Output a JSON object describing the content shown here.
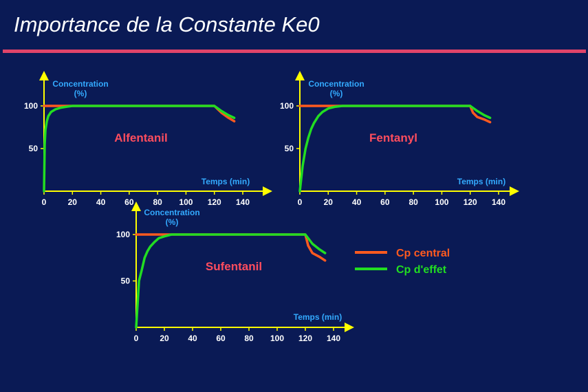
{
  "title": "Importance de la Constante Ke0",
  "colors": {
    "background": "#0a1a55",
    "title_rule": "#e0446a",
    "axis": "#ffff00",
    "central": "#ff5a1f",
    "effect": "#22dd22",
    "drug_label": "#ff4d5e",
    "axis_label": "#33aaff"
  },
  "legend": [
    {
      "label": "Cp central",
      "color": "#ff5a1f"
    },
    {
      "label": "Cp d'effet",
      "color": "#22dd22"
    }
  ],
  "chart_data": [
    {
      "type": "line",
      "label": "Alfentanil",
      "ylabel_line1": "Concentration",
      "ylabel_line2": "(%)",
      "xlabel": "Temps (min)",
      "xticks": [
        0,
        20,
        40,
        60,
        80,
        100,
        120,
        140
      ],
      "yticks": [
        50,
        100
      ],
      "xlim": [
        0,
        150
      ],
      "ylim": [
        0,
        120
      ],
      "series": [
        {
          "key": "central",
          "x": [
            0,
            120,
            125,
            130,
            134
          ],
          "y": [
            100,
            100,
            92,
            86,
            82
          ]
        },
        {
          "key": "effect",
          "x": [
            0,
            0.5,
            1,
            2,
            3,
            5,
            8,
            12,
            16,
            20,
            120,
            125,
            130,
            134
          ],
          "y": [
            0,
            55,
            72,
            82,
            88,
            93,
            96,
            98,
            99,
            100,
            100,
            94,
            89,
            86
          ]
        }
      ]
    },
    {
      "type": "line",
      "label": "Fentanyl",
      "ylabel_line1": "Concentration",
      "ylabel_line2": "(%)",
      "xlabel": "Temps (min)",
      "xticks": [
        0,
        20,
        40,
        60,
        80,
        100,
        120,
        140
      ],
      "yticks": [
        50,
        100
      ],
      "xlim": [
        0,
        150
      ],
      "ylim": [
        0,
        120
      ],
      "series": [
        {
          "key": "central",
          "x": [
            0,
            120,
            122,
            125,
            130,
            134
          ],
          "y": [
            100,
            100,
            92,
            87,
            84,
            81
          ]
        },
        {
          "key": "effect",
          "x": [
            0,
            2,
            4,
            6,
            8,
            10,
            13,
            16,
            20,
            25,
            30,
            120,
            125,
            130,
            134
          ],
          "y": [
            0,
            30,
            50,
            63,
            73,
            80,
            88,
            93,
            97,
            99,
            100,
            100,
            94,
            89,
            86
          ]
        }
      ]
    },
    {
      "type": "line",
      "label": "Sufentanil",
      "ylabel_line1": "Concentration",
      "ylabel_line2": "(%)",
      "xlabel": "Temps (min)",
      "xticks": [
        0,
        20,
        40,
        60,
        80,
        100,
        120,
        140
      ],
      "yticks": [
        50,
        100
      ],
      "xlim": [
        0,
        150
      ],
      "ylim": [
        0,
        120
      ],
      "series": [
        {
          "key": "central",
          "x": [
            0,
            120,
            122,
            125,
            130,
            134
          ],
          "y": [
            100,
            100,
            88,
            80,
            76,
            72
          ]
        },
        {
          "key": "effect",
          "x": [
            0,
            2,
            4,
            6,
            8,
            10,
            13,
            16,
            20,
            25,
            120,
            125,
            130,
            134
          ],
          "y": [
            0,
            50,
            62,
            75,
            82,
            87,
            92,
            96,
            98,
            100,
            100,
            90,
            84,
            80
          ]
        }
      ]
    }
  ]
}
